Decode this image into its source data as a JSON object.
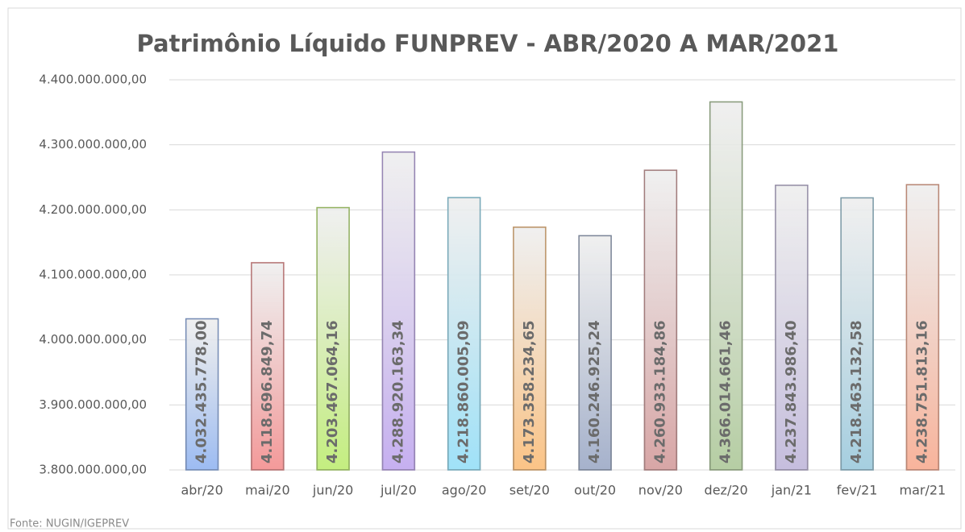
{
  "chart_data": {
    "type": "bar",
    "title": "Patrimônio  Líquido FUNPREV - ABR/2020 A MAR/2021",
    "categories": [
      "abr/20",
      "mai/20",
      "jun/20",
      "jul/20",
      "ago/20",
      "set/20",
      "out/20",
      "nov/20",
      "dez/20",
      "jan/21",
      "fev/21",
      "mar/21"
    ],
    "values": [
      4032435778.0,
      4118696849.74,
      4203467064.16,
      4288920163.34,
      4218860005.09,
      4173358234.65,
      4160246925.24,
      4260933184.86,
      4366014661.46,
      4237843986.4,
      4218463132.58,
      4238751813.16
    ],
    "value_labels": [
      "4.032.435.778,00",
      "4.118.696.849,74",
      "4.203.467.064,16",
      "4.288.920.163,34",
      "4.218.860.005,09",
      "4.173.358.234,65",
      "4.160.246.925,24",
      "4.260.933.184,86",
      "4.366.014.661,46",
      "4.237.843.986,40",
      "4.218.463.132,58",
      "4.238.751.813,16"
    ],
    "colors": [
      "#9dbcf2",
      "#f49a9a",
      "#c4ee80",
      "#c6b0f0",
      "#a0e2f8",
      "#fbc487",
      "#a6b2cc",
      "#d8a6a6",
      "#b6cea4",
      "#c6bede",
      "#a6cfe0",
      "#f8b49c"
    ],
    "ylim": [
      3800000000,
      4400000000
    ],
    "yticks": [
      {
        "value": 3800000000,
        "label": "3.800.000.000,00"
      },
      {
        "value": 3900000000,
        "label": "3.900.000.000,00"
      },
      {
        "value": 4000000000,
        "label": "4.000.000.000,00"
      },
      {
        "value": 4100000000,
        "label": "4.100.000.000,00"
      },
      {
        "value": 4200000000,
        "label": "4.200.000.000,00"
      },
      {
        "value": 4300000000,
        "label": "4.300.000.000,00"
      },
      {
        "value": 4400000000,
        "label": "4.400.000.000,00"
      }
    ],
    "grid": true,
    "source": "Fonte: NUGIN/IGEPREV"
  }
}
